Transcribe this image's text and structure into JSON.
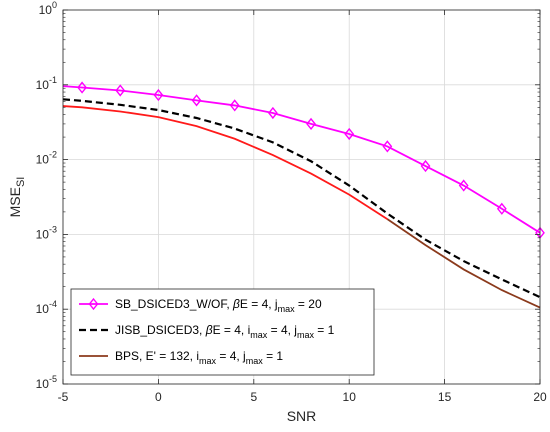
{
  "chart_data": {
    "type": "line",
    "title": "",
    "xlabel": "SNR",
    "ylabel_main": "MSE",
    "ylabel_sub": "SI",
    "xlim": [
      -5,
      20
    ],
    "ylim": [
      1e-05,
      1
    ],
    "yscale": "log",
    "grid": true,
    "legend_position": "bottom-left",
    "xticks": [
      -5,
      0,
      5,
      10,
      15,
      20
    ],
    "yticks": [
      {
        "value": 1,
        "base": "10",
        "exp": "0"
      },
      {
        "value": 0.1,
        "base": "10",
        "exp": "-1"
      },
      {
        "value": 0.01,
        "base": "10",
        "exp": "-2"
      },
      {
        "value": 0.001,
        "base": "10",
        "exp": "-3"
      },
      {
        "value": 0.0001,
        "base": "10",
        "exp": "-4"
      },
      {
        "value": 1e-05,
        "base": "10",
        "exp": "-5"
      }
    ],
    "series": [
      {
        "name": "SB_DSICED3_W/OF, βE = 4, j_max = 20",
        "legend_parts": [
          {
            "t": "SB_DSICED3_W/OF, ",
            "s": "normal"
          },
          {
            "t": "β",
            "s": "italic"
          },
          {
            "t": "E = 4,  j",
            "s": "normal"
          },
          {
            "t": "max",
            "s": "sub"
          },
          {
            "t": " = 20",
            "s": "normal"
          }
        ],
        "color": "#ff00ff",
        "style": "solid",
        "marker": "diamond",
        "x": [
          -5,
          -4,
          -2,
          0,
          2,
          4,
          6,
          8,
          10,
          12,
          14,
          16,
          18,
          20
        ],
        "y": [
          0.096,
          0.092,
          0.084,
          0.073,
          0.062,
          0.053,
          0.042,
          0.03,
          0.022,
          0.015,
          0.0082,
          0.0045,
          0.0022,
          0.00105
        ],
        "markers_x": [
          -4,
          -2,
          0,
          2,
          4,
          6,
          8,
          10,
          12,
          14,
          16,
          18,
          20
        ]
      },
      {
        "name": "JISB_DSICED3, βE = 4, i_max = 4, j_max = 1",
        "legend_parts": [
          {
            "t": "JISB_DSICED3, ",
            "s": "normal"
          },
          {
            "t": "β",
            "s": "italic"
          },
          {
            "t": "E = 4,  i",
            "s": "normal"
          },
          {
            "t": "max",
            "s": "sub"
          },
          {
            "t": " = 4,  j",
            "s": "normal"
          },
          {
            "t": "max",
            "s": "sub"
          },
          {
            "t": " = 1",
            "s": "normal"
          }
        ],
        "color": "#000000",
        "style": "dashed",
        "marker": "none",
        "x": [
          -5,
          -4,
          -2,
          0,
          2,
          4,
          6,
          8,
          10,
          12,
          14,
          16,
          18,
          20
        ],
        "y": [
          0.064,
          0.061,
          0.054,
          0.046,
          0.036,
          0.026,
          0.017,
          0.0095,
          0.0045,
          0.0019,
          0.00085,
          0.00044,
          0.00025,
          0.000145
        ]
      },
      {
        "name": "BPS, E' = 132, i_max = 4, j_max = 1",
        "legend_parts": [
          {
            "t": "BPS, E' = 132,  i",
            "s": "normal"
          },
          {
            "t": "max",
            "s": "sub"
          },
          {
            "t": " = 4,  j",
            "s": "normal"
          },
          {
            "t": "max",
            "s": "sub"
          },
          {
            "t": " = 1",
            "s": "normal"
          }
        ],
        "color": "#ff1a1a",
        "color_tail": "#8b3a1c",
        "color_legend": "#8b3a1c",
        "style": "solid",
        "marker": "none",
        "x": [
          -5,
          -4,
          -2,
          0,
          2,
          4,
          6,
          8,
          10,
          12,
          14,
          16,
          18,
          20
        ],
        "y": [
          0.052,
          0.05,
          0.044,
          0.037,
          0.028,
          0.019,
          0.0115,
          0.0065,
          0.0034,
          0.0016,
          0.00072,
          0.00034,
          0.00018,
          0.000105
        ]
      }
    ]
  }
}
